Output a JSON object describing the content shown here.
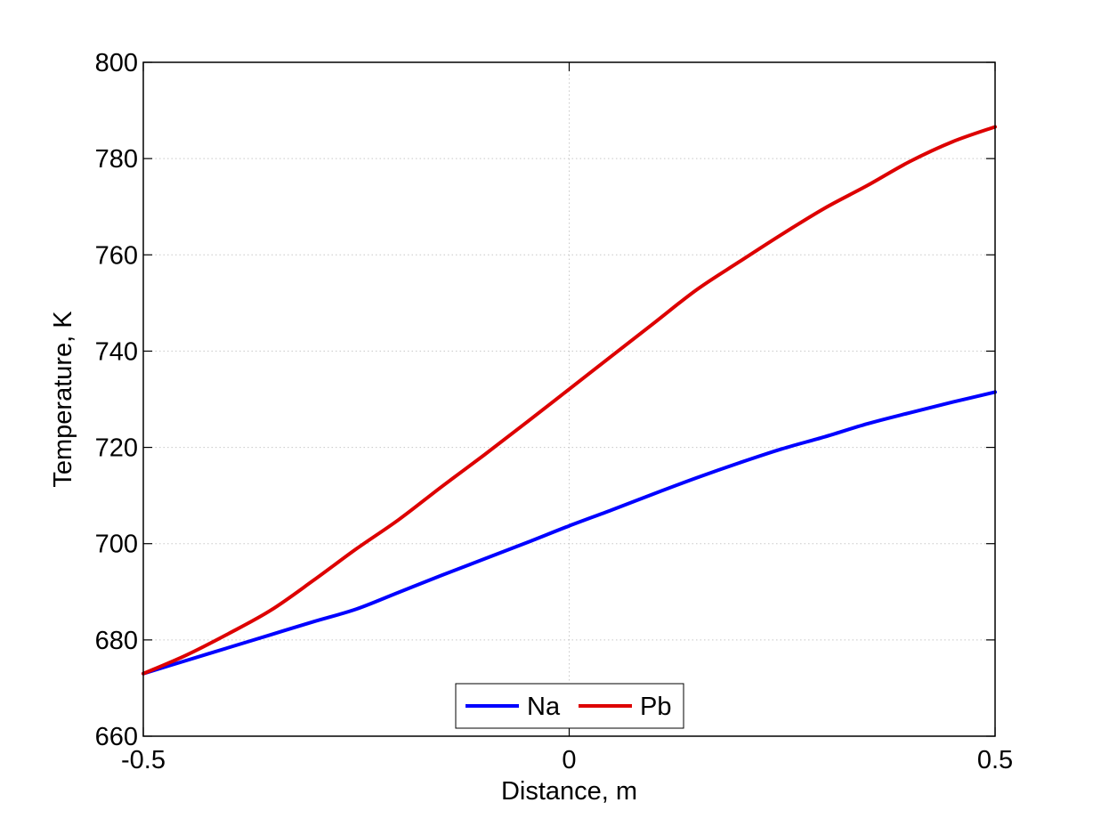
{
  "chart_data": {
    "type": "line",
    "title": "",
    "xlabel": "Distance, m",
    "ylabel": "Temperature, K",
    "xlim": [
      -0.5,
      0.5
    ],
    "ylim": [
      660,
      800
    ],
    "x_ticks": [
      -0.5,
      0,
      0.5
    ],
    "x_tick_labels": [
      "-0.5",
      "0",
      "0.5"
    ],
    "y_ticks": [
      660,
      680,
      700,
      720,
      740,
      760,
      780,
      800
    ],
    "y_tick_labels": [
      "660",
      "680",
      "700",
      "720",
      "740",
      "760",
      "780",
      "800"
    ],
    "grid": true,
    "legend_position": "bottom-center",
    "legend_orientation": "horizontal",
    "series": [
      {
        "name": "Na",
        "color": "#0000ff",
        "x": [
          -0.5,
          -0.45,
          -0.4,
          -0.35,
          -0.3,
          -0.25,
          -0.2,
          -0.15,
          -0.1,
          -0.05,
          0,
          0.05,
          0.1,
          0.15,
          0.2,
          0.25,
          0.3,
          0.35,
          0.4,
          0.45,
          0.5
        ],
        "y": [
          673.0,
          675.7,
          678.4,
          681.1,
          683.8,
          686.4,
          689.9,
          693.4,
          696.8,
          700.2,
          703.7,
          707.0,
          710.4,
          713.7,
          716.8,
          719.7,
          722.2,
          724.9,
          727.2,
          729.4,
          731.5
        ]
      },
      {
        "name": "Pb",
        "color": "#dd0000",
        "x": [
          -0.5,
          -0.45,
          -0.4,
          -0.35,
          -0.3,
          -0.25,
          -0.2,
          -0.15,
          -0.1,
          -0.05,
          0,
          0.05,
          0.1,
          0.15,
          0.2,
          0.25,
          0.3,
          0.35,
          0.4,
          0.45,
          0.5
        ],
        "y": [
          673.0,
          676.8,
          681.3,
          686.2,
          692.4,
          698.9,
          705.0,
          711.8,
          718.4,
          725.2,
          732.1,
          739.0,
          745.9,
          752.8,
          758.6,
          764.3,
          769.7,
          774.4,
          779.4,
          783.5,
          786.6
        ]
      }
    ]
  }
}
